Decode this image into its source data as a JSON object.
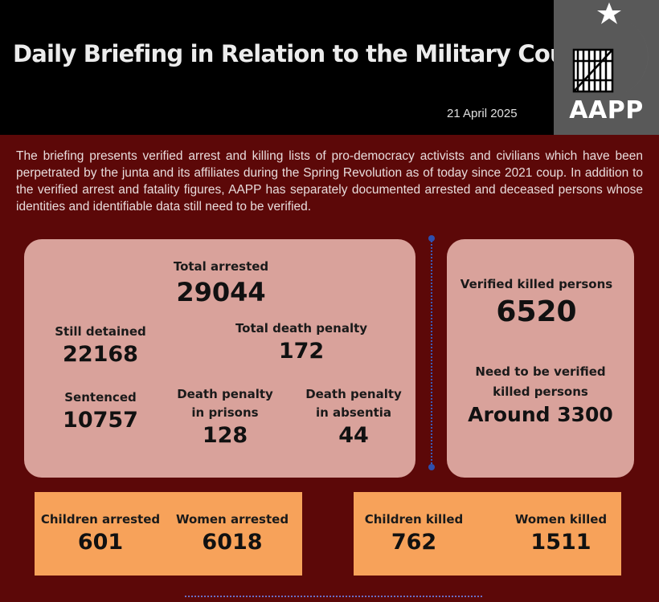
{
  "header": {
    "title": "Daily Briefing in Relation to the Military Coup",
    "date": "21 April 2025",
    "logo_text": "AAPP"
  },
  "intro": "The briefing presents verified arrest and killing lists of pro-democracy activists and civilians which have been perpetrated by the junta and its affiliates during the Spring Revolution as of today since 2021 coup. In addition to the verified arrest and fatality figures, AAPP has separately documented arrested and deceased persons whose identities and identifiable data still need to be verified.",
  "arrests": {
    "total_label": "Total arrested",
    "total_value": "29044",
    "detained_label": "Still detained",
    "detained_value": "22168",
    "death_penalty_label": "Total death penalty",
    "death_penalty_value": "172",
    "sentenced_label": "Sentenced",
    "sentenced_value": "10757",
    "dp_prison_label_1": "Death penalty",
    "dp_prison_label_2": "in prisons",
    "dp_prison_value": "128",
    "dp_absentia_label_1": "Death penalty",
    "dp_absentia_label_2": "in absentia",
    "dp_absentia_value": "44"
  },
  "killed": {
    "verified_label": "Verified killed persons",
    "verified_value": "6520",
    "unverified_label_1": "Need to be verified",
    "unverified_label_2": "killed persons",
    "unverified_value": "Around 3300"
  },
  "arrest_breakdown": {
    "children_label": "Children arrested",
    "children_value": "601",
    "women_label": "Women arrested",
    "women_value": "6018"
  },
  "killed_breakdown": {
    "children_label": "Children killed",
    "children_value": "762",
    "women_label": "Women killed",
    "women_value": "1511"
  },
  "colors": {
    "background": "#5c0808",
    "panel": "#d9a29b",
    "highlight_box": "#f7a25a",
    "header": "#000000",
    "logo_box": "#595959"
  }
}
